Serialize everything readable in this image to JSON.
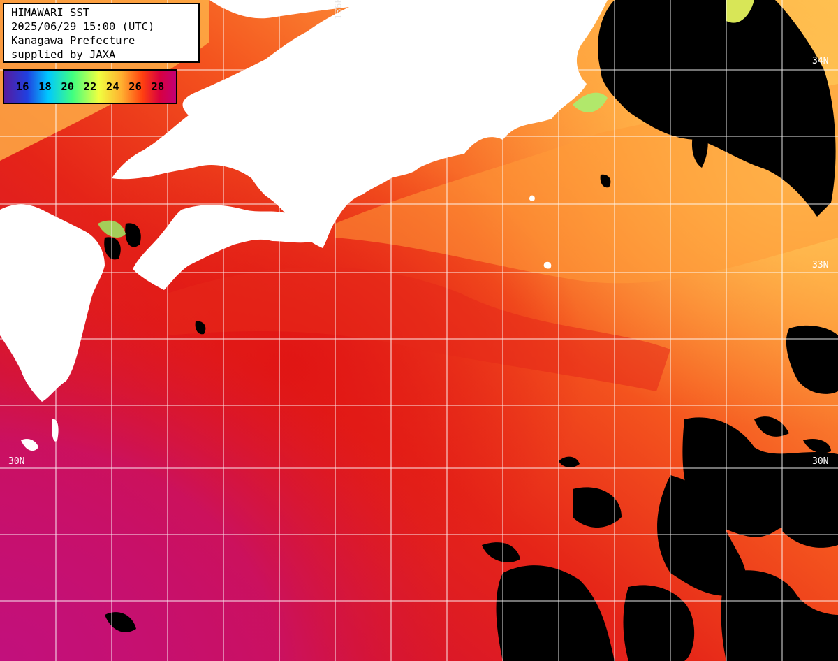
{
  "title": {
    "line1": "HIMAWARI SST",
    "line2": "2025/06/29 15:00 (UTC)",
    "line3": "Kanagawa Prefecture",
    "line4": "supplied by JAXA"
  },
  "legend": {
    "ticks": [
      "16",
      "18",
      "20",
      "22",
      "24",
      "26",
      "28"
    ],
    "gradient_colors": [
      "#5a189a",
      "#2040e0",
      "#00c8ff",
      "#40ff80",
      "#f0ff40",
      "#ffb030",
      "#ff4010",
      "#d80040",
      "#c0007a"
    ]
  },
  "grid_labels": {
    "lon": "136E",
    "lat_right": [
      "34N",
      "33N",
      "30N"
    ],
    "lat_left": "30N"
  },
  "colors": {
    "land": "#ffffff",
    "cloud": "#000000",
    "grid": "#ffffff",
    "sst_warm": "#e01818",
    "sst_orange": "#f46a1c",
    "sst_yellow": "#ffc050",
    "sst_magenta": "#c8107a"
  }
}
